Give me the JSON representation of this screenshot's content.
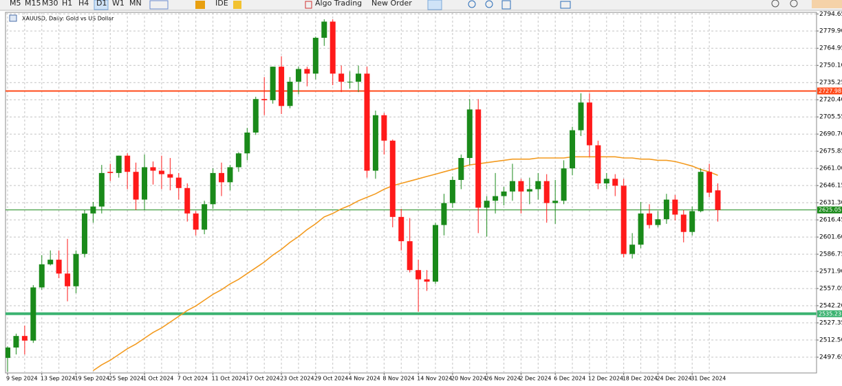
{
  "toolbar": {
    "timeframes": [
      "M5",
      "M15",
      "M30",
      "H1",
      "H4",
      "D1",
      "W1",
      "MN"
    ],
    "active": "D1",
    "ide": "IDE",
    "algo_trading": "Algo Trading",
    "new_order": "New Order"
  },
  "chart_data": {
    "type": "candlestick",
    "title": "XAUUSD, Daily: Gold vs US Dollar",
    "categories": [
      "9 Sep 2024",
      null,
      null,
      null,
      "13 Sep 2024",
      null,
      null,
      null,
      "19 Sep 2024",
      null,
      null,
      null,
      "25 Sep 2024",
      null,
      null,
      null,
      "1 Oct 2024",
      null,
      null,
      null,
      "7 Oct 2024",
      null,
      null,
      null,
      "11 Oct 2024",
      null,
      null,
      null,
      "17 Oct 2024",
      null,
      null,
      null,
      "23 Oct 2024",
      null,
      null,
      null,
      "29 Oct 2024",
      null,
      null,
      null,
      "4 Nov 2024",
      null,
      null,
      null,
      "8 Nov 2024",
      null,
      null,
      null,
      "14 Nov 2024",
      null,
      null,
      null,
      "20 Nov 2024",
      null,
      null,
      null,
      "26 Nov 2024",
      null,
      null,
      null,
      "2 Dec 2024",
      null,
      null,
      null,
      "6 Dec 2024",
      null,
      null,
      null,
      "12 Dec 2024",
      null,
      null,
      null,
      "18 Dec 2024",
      null,
      null,
      null,
      "24 Dec 2024",
      null,
      null,
      null,
      "31 Dec 2024",
      null,
      null,
      null
    ],
    "open": [
      2497,
      2506,
      2516,
      2512,
      2558,
      2578,
      2582,
      2570,
      2559,
      2587,
      2622,
      2628,
      2658,
      2657,
      2672,
      2658,
      2634,
      2662,
      2659,
      2656,
      2653,
      2644,
      2622,
      2608,
      2630,
      2657,
      2649,
      2662,
      2674,
      2692,
      2721,
      2720,
      2749,
      2715,
      2736,
      2747,
      2743,
      2774,
      2788,
      2743,
      2736,
      2736,
      2743,
      2659,
      2707,
      2685,
      2619,
      2598,
      2573,
      2565,
      2563,
      2612,
      2631,
      2651,
      2670,
      2712,
      2627,
      2633,
      2637,
      2641,
      2650,
      2641,
      2643,
      2650,
      2631,
      2633,
      2661,
      2694,
      2718,
      2681,
      2648,
      2652,
      2646,
      2587,
      2595,
      2622,
      2612,
      2617,
      2634,
      2621,
      2606,
      2624,
      2658,
      2642
    ],
    "high": [
      2507,
      2518,
      2525,
      2560,
      2586,
      2590,
      2590,
      2600,
      2590,
      2625,
      2632,
      2664,
      2665,
      2672,
      2674,
      2666,
      2673,
      2667,
      2672,
      2670,
      2657,
      2648,
      2624,
      2633,
      2661,
      2666,
      2664,
      2675,
      2696,
      2723,
      2740,
      2749,
      2758,
      2740,
      2749,
      2749,
      2775,
      2790,
      2790,
      2750,
      2745,
      2750,
      2749,
      2711,
      2709,
      2686,
      2626,
      2618,
      2582,
      2573,
      2614,
      2639,
      2654,
      2673,
      2721,
      2721,
      2637,
      2657,
      2645,
      2665,
      2652,
      2653,
      2657,
      2656,
      2651,
      2668,
      2697,
      2726,
      2726,
      2685,
      2657,
      2656,
      2652,
      2605,
      2632,
      2630,
      2624,
      2639,
      2638,
      2625,
      2628,
      2661,
      2665,
      2648
    ],
    "low": [
      2485,
      2500,
      2500,
      2510,
      2556,
      2577,
      2566,
      2546,
      2553,
      2584,
      2614,
      2622,
      2650,
      2653,
      2643,
      2625,
      2625,
      2647,
      2643,
      2642,
      2634,
      2615,
      2603,
      2604,
      2626,
      2637,
      2642,
      2658,
      2668,
      2690,
      2707,
      2717,
      2708,
      2713,
      2725,
      2732,
      2738,
      2767,
      2733,
      2727,
      2730,
      2727,
      2653,
      2652,
      2673,
      2610,
      2590,
      2571,
      2537,
      2555,
      2561,
      2603,
      2627,
      2643,
      2664,
      2605,
      2602,
      2622,
      2629,
      2633,
      2622,
      2630,
      2634,
      2614,
      2613,
      2630,
      2655,
      2689,
      2671,
      2643,
      2643,
      2637,
      2584,
      2583,
      2592,
      2609,
      2610,
      2613,
      2616,
      2597,
      2603,
      2623,
      2636,
      2615
    ],
    "close": [
      2506,
      2516,
      2512,
      2558,
      2578,
      2582,
      2570,
      2559,
      2587,
      2622,
      2628,
      2657,
      2657,
      2672,
      2658,
      2634,
      2662,
      2659,
      2656,
      2653,
      2644,
      2622,
      2608,
      2630,
      2657,
      2649,
      2662,
      2674,
      2692,
      2721,
      2720,
      2749,
      2715,
      2736,
      2747,
      2743,
      2774,
      2788,
      2743,
      2736,
      2736,
      2743,
      2659,
      2707,
      2685,
      2619,
      2598,
      2573,
      2565,
      2563,
      2612,
      2631,
      2651,
      2670,
      2712,
      2627,
      2633,
      2637,
      2641,
      2650,
      2641,
      2643,
      2650,
      2631,
      2633,
      2661,
      2694,
      2718,
      2681,
      2648,
      2652,
      2646,
      2587,
      2595,
      2622,
      2612,
      2617,
      2634,
      2621,
      2606,
      2624,
      2658,
      2640,
      2625
    ],
    "up_color": "#1a8a1a",
    "down_color": "#ff1a1a",
    "ma": {
      "color": "#f39a1e",
      "values": [
        null,
        null,
        null,
        null,
        null,
        null,
        null,
        null,
        null,
        null,
        2486,
        2491,
        2495,
        2500,
        2505,
        2509,
        2514,
        2519,
        2523,
        2528,
        2533,
        2538,
        2542,
        2547,
        2552,
        2556,
        2561,
        2565,
        2570,
        2575,
        2580,
        2586,
        2591,
        2597,
        2602,
        2608,
        2613,
        2619,
        2622,
        2626,
        2629,
        2633,
        2636,
        2639,
        2643,
        2646,
        2648,
        2650,
        2652,
        2654,
        2656,
        2658,
        2660,
        2662,
        2664,
        2665,
        2666,
        2667,
        2668,
        2669,
        2669,
        2669,
        2670,
        2670,
        2670,
        2670,
        2671,
        2671,
        2671,
        2671,
        2671,
        2671,
        2670,
        2670,
        2669,
        2669,
        2668,
        2668,
        2667,
        2665,
        2663,
        2660,
        2658,
        2655
      ]
    },
    "hlines": [
      {
        "value": 2727.98,
        "color": "#ff4a1a"
      },
      {
        "value": 2625.05,
        "color": "#1a8a1a"
      },
      {
        "value": 2535.23,
        "color": "#3cb371"
      }
    ],
    "ylim": [
      2484,
      2796
    ],
    "yticks": [
      2794.65,
      {
        "value": 2779.9,
        "label": "2779.90"
      },
      2764.95,
      {
        "value": 2750.1,
        "label": "2750.10"
      },
      2735.25,
      {
        "value": 2720.4,
        "label": "2720.40"
      },
      2705.55,
      {
        "value": 2690.7,
        "label": "2690.70"
      },
      2675.85,
      {
        "value": 2661.0,
        "label": "2661.00"
      },
      2646.15,
      {
        "value": 2631.3,
        "label": "2631.30"
      },
      2616.45,
      {
        "value": 2601.6,
        "label": "2601.60"
      },
      2586.75,
      {
        "value": 2571.9,
        "label": "2571.90"
      },
      2557.05,
      {
        "value": 2542.2,
        "label": "2542.20"
      },
      2527.35,
      {
        "value": 2512.5,
        "label": "2512.50"
      },
      2497.65
    ],
    "grid": true
  }
}
